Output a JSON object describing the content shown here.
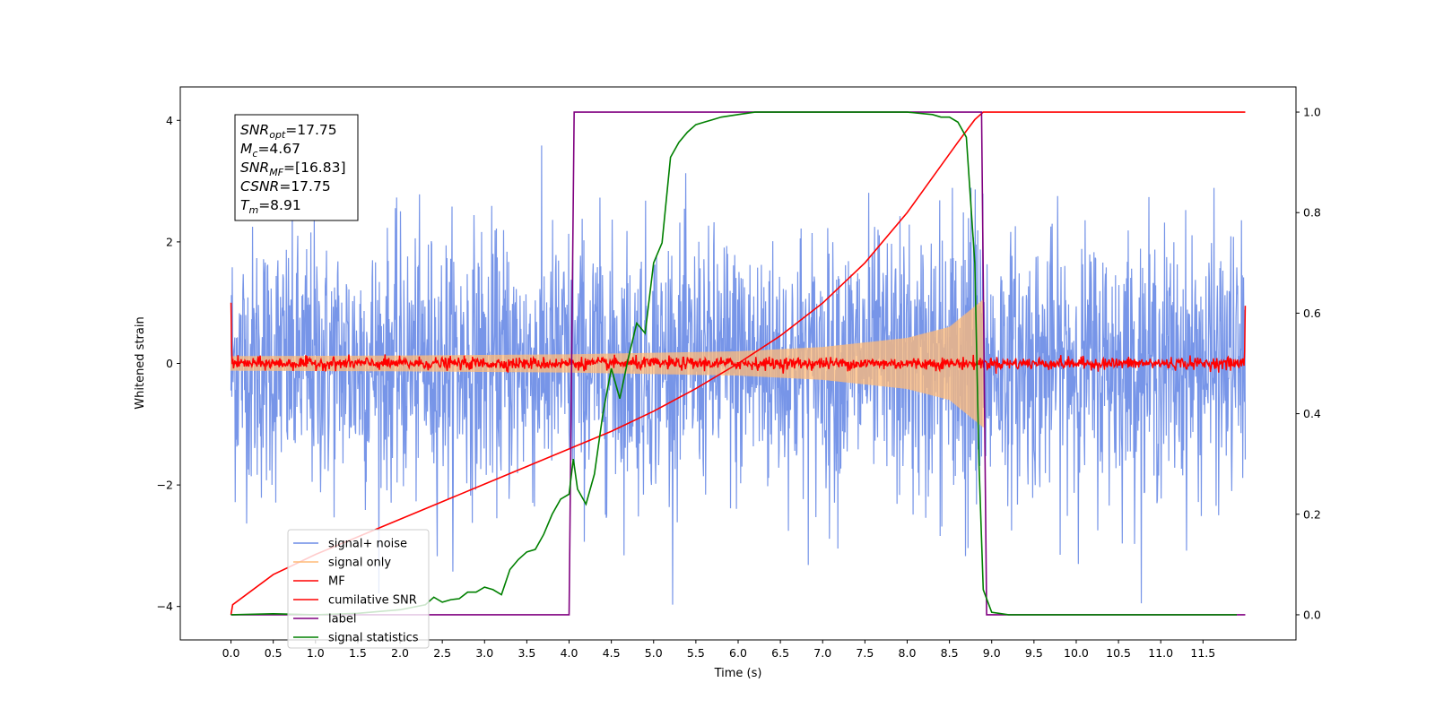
{
  "chart_data": {
    "type": "line",
    "title": "",
    "xlabel": "Time (s)",
    "ylabel_left": "Whitened strain",
    "ylabel_right": "",
    "xlim": [
      -0.6,
      12.6
    ],
    "ylim_left": [
      -4.55,
      4.55
    ],
    "ylim_right": [
      -0.05,
      1.05
    ],
    "x_ticks": [
      "0.0",
      "0.5",
      "1.0",
      "1.5",
      "2.0",
      "2.5",
      "3.0",
      "3.5",
      "4.0",
      "4.5",
      "5.0",
      "5.5",
      "6.0",
      "6.5",
      "7.0",
      "7.5",
      "8.0",
      "8.5",
      "9.0",
      "9.5",
      "10.0",
      "10.5",
      "11.0",
      "11.5"
    ],
    "y_ticks_left": [
      "−4",
      "−2",
      "0",
      "2",
      "4"
    ],
    "y_ticks_right": [
      "0.0",
      "0.2",
      "0.4",
      "0.6",
      "0.8",
      "1.0"
    ],
    "grid": false,
    "legend_position": "lower-left",
    "annotation": [
      {
        "base": "SNR",
        "sub": "opt",
        "value": "=17.75"
      },
      {
        "base": "M",
        "sub": "c",
        "value": "=4.67"
      },
      {
        "base": "SNR",
        "sub": "MF",
        "value": "=[16.83]"
      },
      {
        "base": "CSNR",
        "sub": "",
        "value": "=17.75"
      },
      {
        "base": "T",
        "sub": "m",
        "value": "=8.91"
      }
    ],
    "series": [
      {
        "name": "signal+ noise",
        "color": "#6b8ce6",
        "axis": "left",
        "kind": "noise",
        "amplitude_std": 1.0,
        "x_range": [
          0.0,
          12.0
        ]
      },
      {
        "name": "signal only",
        "color": "#ffbb78",
        "axis": "left",
        "kind": "chirp",
        "x_range": [
          0.0,
          8.9
        ],
        "envelope_x": [
          0.0,
          2.0,
          4.0,
          6.0,
          7.0,
          8.0,
          8.5,
          8.9
        ],
        "envelope_y": [
          0.12,
          0.13,
          0.15,
          0.2,
          0.27,
          0.42,
          0.6,
          1.05
        ]
      },
      {
        "name": "MF",
        "color": "#ff0000",
        "axis": "left",
        "kind": "mf",
        "x_range": [
          0.0,
          12.0
        ],
        "start_value": 1.0,
        "end_value": 0.95,
        "noise_amplitude": 0.05
      },
      {
        "name": "cumilative SNR",
        "color": "#ff0000",
        "axis": "right",
        "x": [
          0.0,
          0.02,
          0.5,
          1.0,
          1.5,
          2.0,
          2.5,
          3.0,
          3.5,
          4.0,
          4.5,
          5.0,
          5.5,
          6.0,
          6.5,
          7.0,
          7.5,
          8.0,
          8.3,
          8.6,
          8.8,
          8.9,
          8.91,
          12.0
        ],
        "y": [
          0.0,
          0.02,
          0.08,
          0.12,
          0.155,
          0.19,
          0.225,
          0.26,
          0.295,
          0.33,
          0.365,
          0.405,
          0.45,
          0.5,
          0.555,
          0.62,
          0.7,
          0.8,
          0.87,
          0.94,
          0.985,
          1.0,
          1.0,
          1.0
        ]
      },
      {
        "name": "label",
        "color": "#800080",
        "axis": "right",
        "x": [
          0.0,
          4.0,
          4.06,
          8.88,
          8.94,
          12.0
        ],
        "y": [
          0.0,
          0.0,
          1.0,
          1.0,
          0.0,
          0.0
        ]
      },
      {
        "name": "signal statistics",
        "color": "#008000",
        "axis": "right",
        "x": [
          0.0,
          0.5,
          1.0,
          1.5,
          2.0,
          2.3,
          2.4,
          2.5,
          2.6,
          2.7,
          2.8,
          2.9,
          3.0,
          3.1,
          3.2,
          3.3,
          3.4,
          3.5,
          3.6,
          3.7,
          3.8,
          3.9,
          4.0,
          4.05,
          4.1,
          4.2,
          4.3,
          4.4,
          4.5,
          4.6,
          4.7,
          4.8,
          4.9,
          5.0,
          5.1,
          5.2,
          5.3,
          5.4,
          5.5,
          5.6,
          5.7,
          5.8,
          6.0,
          6.2,
          6.5,
          7.0,
          7.5,
          8.0,
          8.3,
          8.4,
          8.5,
          8.6,
          8.7,
          8.8,
          8.85,
          8.9,
          9.0,
          9.2,
          10.0,
          11.0,
          11.9
        ],
        "y": [
          0.0,
          0.002,
          0.0,
          0.003,
          0.01,
          0.02,
          0.035,
          0.025,
          0.03,
          0.032,
          0.045,
          0.045,
          0.055,
          0.05,
          0.04,
          0.09,
          0.11,
          0.125,
          0.13,
          0.16,
          0.2,
          0.23,
          0.24,
          0.31,
          0.25,
          0.22,
          0.28,
          0.4,
          0.49,
          0.43,
          0.51,
          0.58,
          0.56,
          0.7,
          0.74,
          0.91,
          0.94,
          0.96,
          0.975,
          0.98,
          0.985,
          0.99,
          0.995,
          1.0,
          1.0,
          1.0,
          1.0,
          1.0,
          0.995,
          0.99,
          0.99,
          0.98,
          0.95,
          0.7,
          0.3,
          0.05,
          0.005,
          0.0,
          0.0,
          0.0,
          0.0
        ]
      }
    ]
  }
}
